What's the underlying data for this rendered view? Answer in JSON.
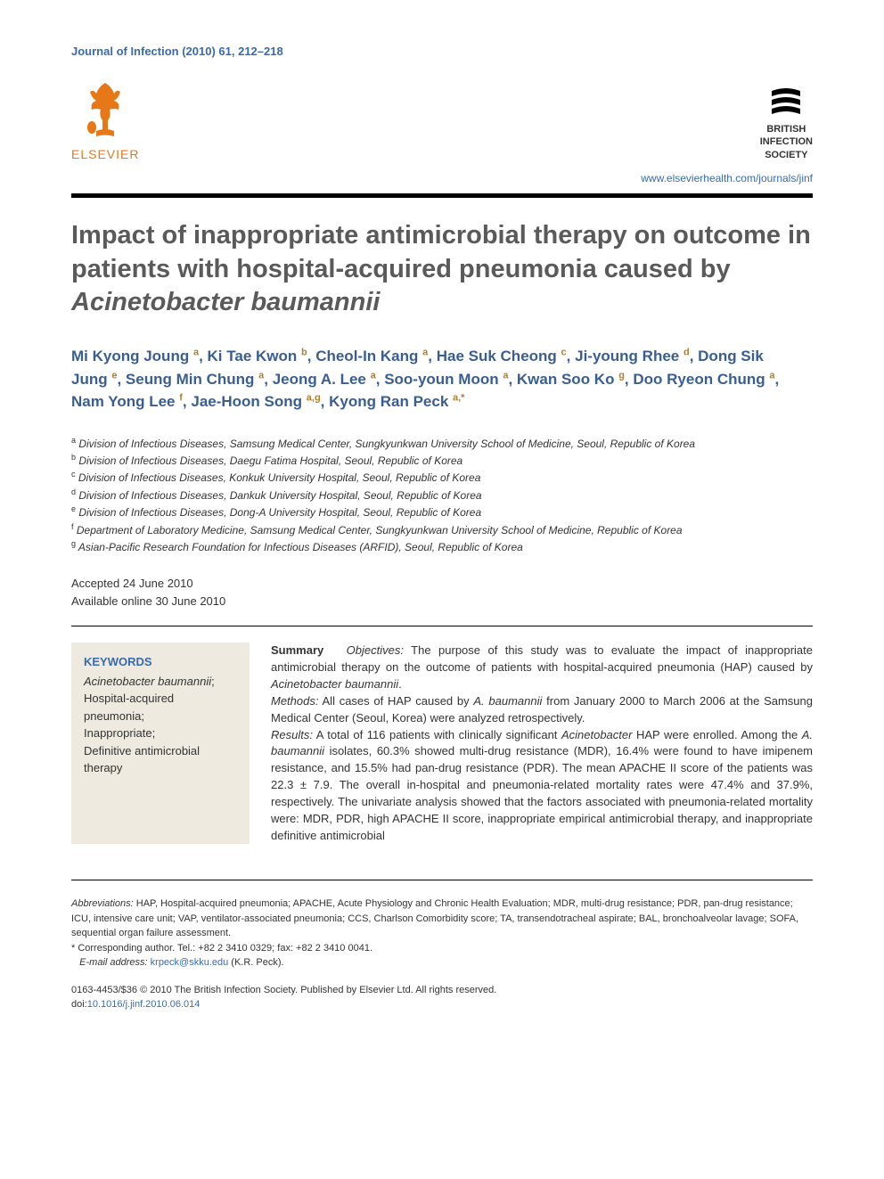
{
  "journal_ref": "Journal of Infection (2010) 61, 212–218",
  "publisher": {
    "name": "ELSEVIER",
    "logo_color": "#e67817"
  },
  "society": {
    "line1": "BRITISH",
    "line2": "INFECTION",
    "line3": "SOCIETY"
  },
  "journal_url": "www.elsevierhealth.com/journals/jinf",
  "title": {
    "main": "Impact of inappropriate antimicrobial therapy on outcome in patients with hospital-acquired pneumonia caused by ",
    "italic": "Acinetobacter baumannii"
  },
  "authors": [
    {
      "name": "Mi Kyong Joung",
      "aff": "a"
    },
    {
      "name": "Ki Tae Kwon",
      "aff": "b"
    },
    {
      "name": "Cheol-In Kang",
      "aff": "a"
    },
    {
      "name": "Hae Suk Cheong",
      "aff": "c"
    },
    {
      "name": "Ji-young Rhee",
      "aff": "d"
    },
    {
      "name": "Dong Sik Jung",
      "aff": "e"
    },
    {
      "name": "Seung Min Chung",
      "aff": "a"
    },
    {
      "name": "Jeong A. Lee",
      "aff": "a"
    },
    {
      "name": "Soo-youn Moon",
      "aff": "a"
    },
    {
      "name": "Kwan Soo Ko",
      "aff": "g"
    },
    {
      "name": "Doo Ryeon Chung",
      "aff": "a"
    },
    {
      "name": "Nam Yong Lee",
      "aff": "f"
    },
    {
      "name": "Jae-Hoon Song",
      "aff": "a,g"
    },
    {
      "name": "Kyong Ran Peck",
      "aff": "a,*",
      "corresponding": true
    }
  ],
  "affiliations": [
    {
      "key": "a",
      "text": "Division of Infectious Diseases, Samsung Medical Center, Sungkyunkwan University School of Medicine, Seoul, Republic of Korea"
    },
    {
      "key": "b",
      "text": "Division of Infectious Diseases, Daegu Fatima Hospital, Seoul, Republic of Korea"
    },
    {
      "key": "c",
      "text": "Division of Infectious Diseases, Konkuk University Hospital, Seoul, Republic of Korea"
    },
    {
      "key": "d",
      "text": "Division of Infectious Diseases, Dankuk University Hospital, Seoul, Republic of Korea"
    },
    {
      "key": "e",
      "text": "Division of Infectious Diseases, Dong-A University Hospital, Seoul, Republic of Korea"
    },
    {
      "key": "f",
      "text": "Department of Laboratory Medicine, Samsung Medical Center, Sungkyunkwan University School of Medicine, Republic of Korea"
    },
    {
      "key": "g",
      "text": "Asian-Pacific Research Foundation for Infectious Diseases (ARFID), Seoul, Republic of Korea"
    }
  ],
  "dates": {
    "accepted": "Accepted 24 June 2010",
    "online": "Available online 30 June 2010"
  },
  "keywords": {
    "heading": "KEYWORDS",
    "items": [
      {
        "text": "Acinetobacter baumannii",
        "italic": true,
        "suffix": ";"
      },
      {
        "text": "Hospital-acquired pneumonia",
        "suffix": ";"
      },
      {
        "text": "Inappropriate",
        "suffix": ";"
      },
      {
        "text": "Definitive antimicrobial therapy",
        "suffix": ""
      }
    ]
  },
  "abstract": {
    "summary_label": "Summary",
    "objectives_label": "Objectives:",
    "objectives_text": " The purpose of this study was to evaluate the impact of inappropriate antimicrobial therapy on the outcome of patients with hospital-acquired pneumonia (HAP) caused by ",
    "objectives_italic": "Acinetobacter baumannii",
    "objectives_end": ".",
    "methods_label": "Methods:",
    "methods_text": " All cases of HAP caused by ",
    "methods_italic": "A. baumannii",
    "methods_text2": " from January 2000 to March 2006 at the Samsung Medical Center (Seoul, Korea) were analyzed retrospectively.",
    "results_label": "Results:",
    "results_text": " A total of 116 patients with clinically significant ",
    "results_italic": "Acinetobacter",
    "results_text2": " HAP were enrolled. Among the ",
    "results_italic2": "A. baumannii",
    "results_text3": " isolates, 60.3% showed multi-drug resistance (MDR), 16.4% were found to have imipenem resistance, and 15.5% had pan-drug resistance (PDR). The mean APACHE II score of the patients was 22.3 ± 7.9. The overall in-hospital and pneumonia-related mortality rates were 47.4% and 37.9%, respectively. The univariate analysis showed that the factors associated with pneumonia-related mortality were: MDR, PDR, high APACHE II score, inappropriate empirical antimicrobial therapy, and inappropriate definitive antimicrobial"
  },
  "footnotes": {
    "abbrev_label": "Abbreviations:",
    "abbreviations": " HAP, Hospital-acquired pneumonia; APACHE, Acute Physiology and Chronic Health Evaluation; MDR, multi-drug resistance; PDR, pan-drug resistance; ICU, intensive care unit; VAP, ventilator-associated pneumonia; CCS, Charlson Comorbidity score; TA, transendotracheal aspirate; BAL, bronchoalveolar lavage; SOFA, sequential organ failure assessment.",
    "corr_label": "* Corresponding author. Tel.: +82 2 3410 0329; fax: +82 2 3410 0041.",
    "email_label": "E-mail address:",
    "email": "krpeck@skku.edu",
    "email_person": " (K.R. Peck)."
  },
  "copyright": {
    "line1": "0163-4453/$36 © 2010 The British Infection Society. Published by Elsevier Ltd. All rights reserved.",
    "doi_label": "doi:",
    "doi": "10.1016/j.jinf.2010.06.014"
  },
  "colors": {
    "link": "#3a6ba8",
    "publisher": "#e67817",
    "title": "#5a5a5a",
    "author": "#3a5e8f",
    "sup": "#b08030",
    "keywords_bg": "#eeeae0"
  }
}
